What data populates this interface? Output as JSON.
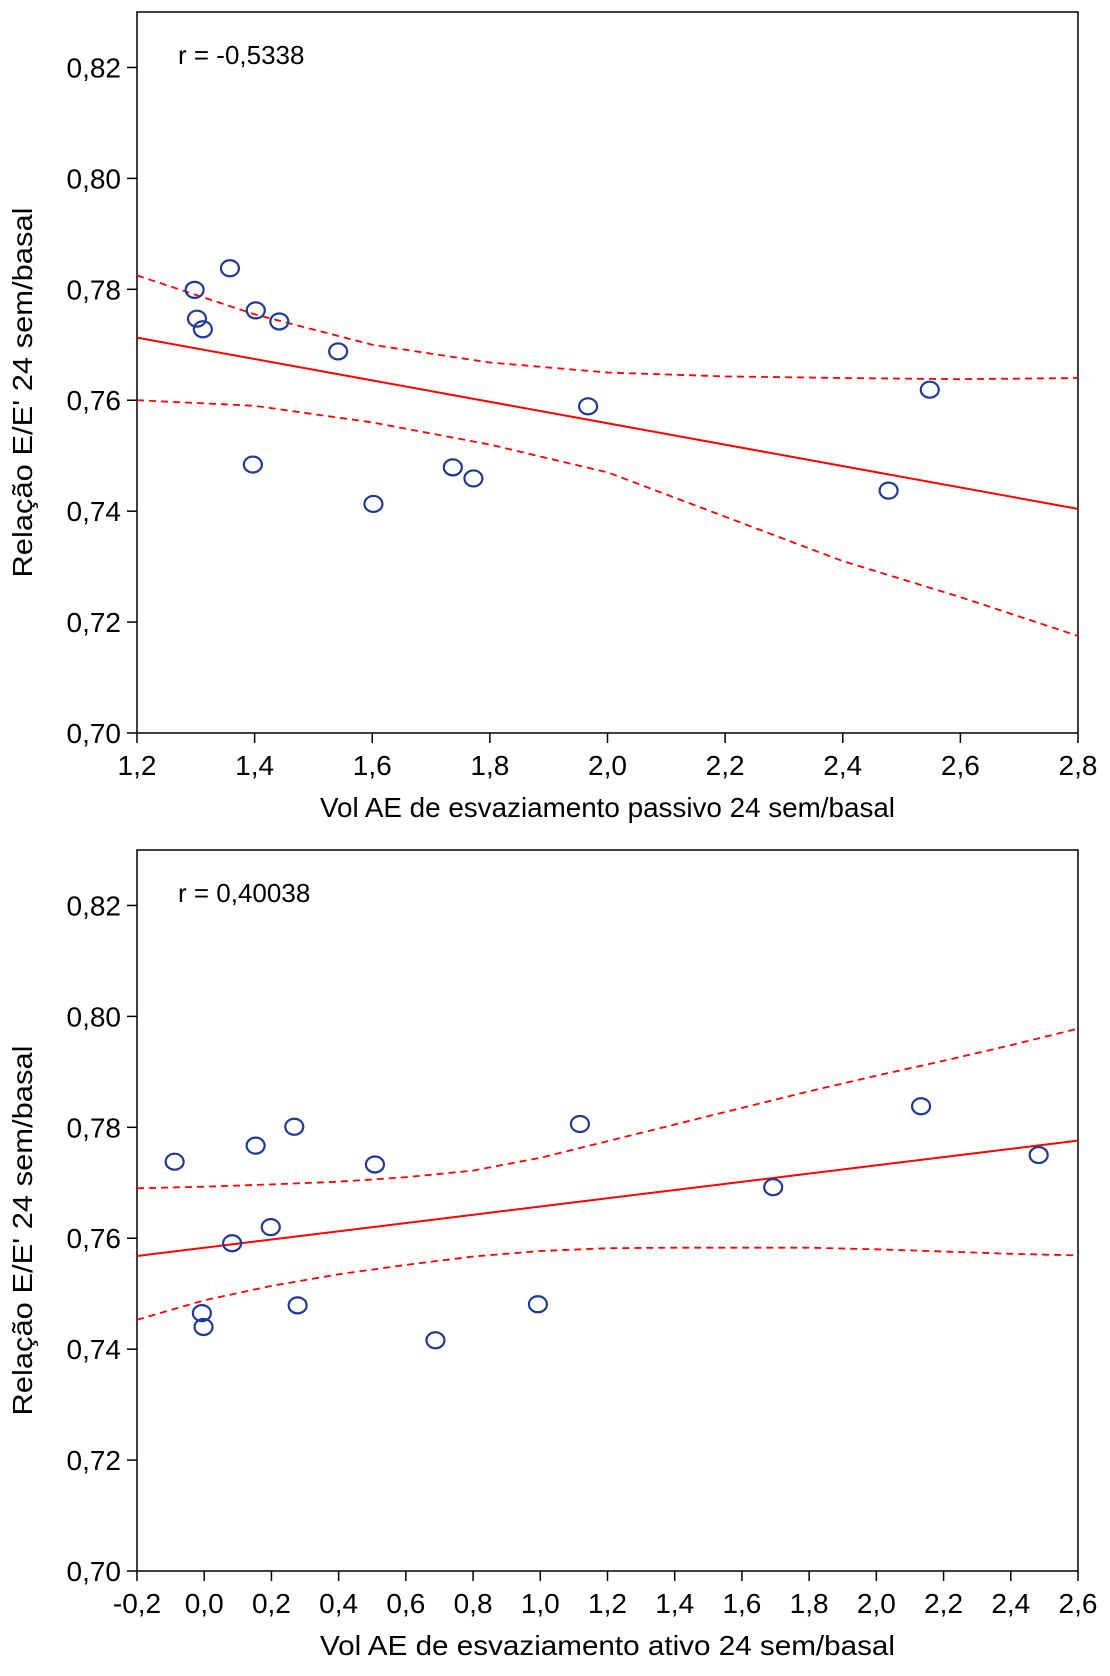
{
  "chart_data": [
    {
      "type": "scatter",
      "title": "",
      "annotation": "r = -0,5338",
      "xlabel": "Vol AE de esvaziamento passivo 24 sem/basal",
      "ylabel": "Relação E/E' 24 sem/basal",
      "xlim": [
        1.2,
        2.8
      ],
      "ylim": [
        0.7,
        0.83
      ],
      "x_ticks": [
        1.2,
        1.4,
        1.6,
        1.8,
        2.0,
        2.2,
        2.4,
        2.6,
        2.8
      ],
      "x_tick_labels": [
        "1,2",
        "1,4",
        "1,6",
        "1,8",
        "2,0",
        "2,2",
        "2,4",
        "2,6",
        "2,8"
      ],
      "y_ticks": [
        0.7,
        0.72,
        0.74,
        0.76,
        0.78,
        0.8,
        0.82
      ],
      "y_tick_labels": [
        "0,70",
        "0,72",
        "0,74",
        "0,76",
        "0,78",
        "0,80",
        "0,82"
      ],
      "grid": false,
      "points": [
        {
          "x": 1.298,
          "y": 0.7799
        },
        {
          "x": 1.358,
          "y": 0.7838
        },
        {
          "x": 1.302,
          "y": 0.7747
        },
        {
          "x": 1.312,
          "y": 0.7728
        },
        {
          "x": 1.402,
          "y": 0.7762
        },
        {
          "x": 1.442,
          "y": 0.7742
        },
        {
          "x": 1.542,
          "y": 0.7688
        },
        {
          "x": 1.397,
          "y": 0.7484
        },
        {
          "x": 1.602,
          "y": 0.7413
        },
        {
          "x": 1.737,
          "y": 0.7479
        },
        {
          "x": 1.772,
          "y": 0.7459
        },
        {
          "x": 1.967,
          "y": 0.7589
        },
        {
          "x": 2.478,
          "y": 0.7437
        },
        {
          "x": 2.548,
          "y": 0.7619
        }
      ],
      "fit_line": {
        "x": [
          1.2,
          2.8
        ],
        "y": [
          0.7713,
          0.7404
        ]
      },
      "ci_upper": {
        "x": [
          1.2,
          1.4,
          1.6,
          1.8,
          2.0,
          2.2,
          2.4,
          2.6,
          2.8
        ],
        "y": [
          0.7825,
          0.7755,
          0.77,
          0.7668,
          0.765,
          0.7643,
          0.764,
          0.7638,
          0.764
        ]
      },
      "ci_lower": {
        "x": [
          1.2,
          1.4,
          1.6,
          1.8,
          2.0,
          2.2,
          2.4,
          2.6,
          2.8
        ],
        "y": [
          0.76,
          0.759,
          0.756,
          0.752,
          0.747,
          0.739,
          0.731,
          0.7245,
          0.7175
        ]
      },
      "colors": {
        "points": "#1f3a93",
        "fit": "#ff0000",
        "ci": "#ff0000"
      }
    },
    {
      "type": "scatter",
      "title": "",
      "annotation": "r = 0,40038",
      "xlabel": "Vol AE de esvaziamento ativo 24 sem/basal",
      "ylabel": "Relação E/E' 24 sem/basal",
      "xlim": [
        -0.2,
        2.6
      ],
      "ylim": [
        0.7,
        0.83
      ],
      "x_ticks": [
        -0.2,
        0.0,
        0.2,
        0.4,
        0.6,
        0.8,
        1.0,
        1.2,
        1.4,
        1.6,
        1.8,
        2.0,
        2.2,
        2.4,
        2.6
      ],
      "x_tick_labels": [
        "-0,2",
        "0,0",
        "0,2",
        "0,4",
        "0,6",
        "0,8",
        "1,0",
        "1,2",
        "1,4",
        "1,6",
        "1,8",
        "2,0",
        "2,2",
        "2,4",
        "2,6"
      ],
      "y_ticks": [
        0.7,
        0.72,
        0.74,
        0.76,
        0.78,
        0.8,
        0.82
      ],
      "y_tick_labels": [
        "0,70",
        "0,72",
        "0,74",
        "0,76",
        "0,78",
        "0,80",
        "0,82"
      ],
      "grid": false,
      "points": [
        {
          "x": -0.088,
          "y": 0.7738
        },
        {
          "x": 0.153,
          "y": 0.7767
        },
        {
          "x": 0.268,
          "y": 0.7801
        },
        {
          "x": 0.508,
          "y": 0.7733
        },
        {
          "x": 1.118,
          "y": 0.7806
        },
        {
          "x": 2.133,
          "y": 0.7838
        },
        {
          "x": 2.483,
          "y": 0.775
        },
        {
          "x": 1.693,
          "y": 0.7692
        },
        {
          "x": 0.198,
          "y": 0.762
        },
        {
          "x": 0.083,
          "y": 0.7591
        },
        {
          "x": -0.007,
          "y": 0.7465
        },
        {
          "x": -0.002,
          "y": 0.744
        },
        {
          "x": 0.278,
          "y": 0.7479
        },
        {
          "x": 0.688,
          "y": 0.7416
        },
        {
          "x": 0.993,
          "y": 0.7481
        }
      ],
      "fit_line": {
        "x": [
          -0.2,
          2.6
        ],
        "y": [
          0.7568,
          0.7776
        ]
      },
      "ci_upper": {
        "x": [
          -0.2,
          0.0,
          0.2,
          0.4,
          0.6,
          0.8,
          1.0,
          1.2,
          1.4,
          1.6,
          1.8,
          2.0,
          2.2,
          2.4,
          2.6
        ],
        "y": [
          0.769,
          0.7693,
          0.7697,
          0.7702,
          0.771,
          0.7722,
          0.7745,
          0.7775,
          0.7805,
          0.7835,
          0.7865,
          0.7893,
          0.792,
          0.7948,
          0.7978
        ]
      },
      "ci_lower": {
        "x": [
          -0.2,
          0.0,
          0.2,
          0.4,
          0.6,
          0.8,
          1.0,
          1.2,
          1.4,
          1.6,
          1.8,
          2.0,
          2.2,
          2.4,
          2.6
        ],
        "y": [
          0.7453,
          0.7488,
          0.7514,
          0.7535,
          0.7552,
          0.7567,
          0.7577,
          0.7582,
          0.7583,
          0.7583,
          0.7583,
          0.758,
          0.7576,
          0.7572,
          0.7569
        ]
      },
      "colors": {
        "points": "#1f3a93",
        "fit": "#ff0000",
        "ci": "#ff0000"
      }
    }
  ]
}
